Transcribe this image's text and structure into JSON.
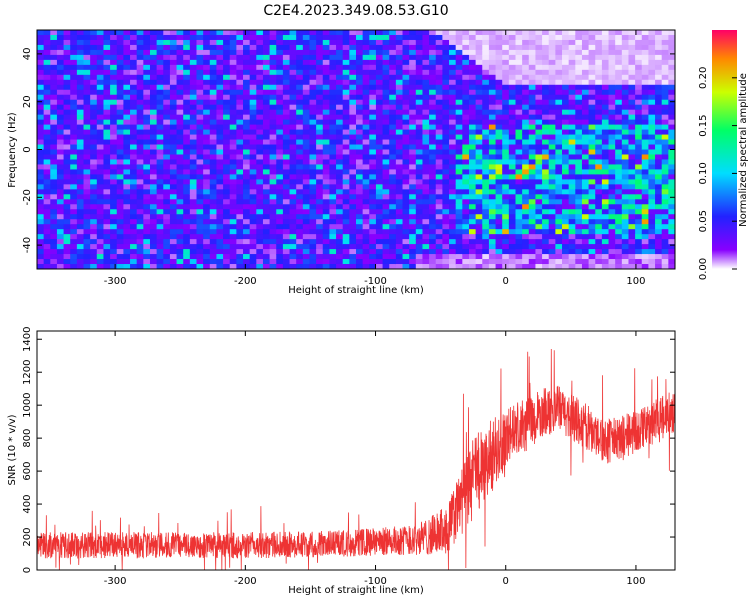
{
  "title": "C2E4.2023.349.08.53.G10",
  "chart_data": [
    {
      "type": "heatmap",
      "xlabel": "Height of straight line (km)",
      "ylabel": "Frequency (Hz)",
      "xlim": [
        -360,
        130
      ],
      "ylim": [
        -50,
        50
      ],
      "x_ticks": [
        -300,
        -200,
        -100,
        0,
        100
      ],
      "y_ticks": [
        -40,
        -20,
        0,
        20,
        40
      ],
      "colorbar": {
        "label": "Normalized spectral amplitude",
        "range": [
          0,
          0.25
        ],
        "ticks": [
          "0.00",
          "0.05",
          "0.10",
          "0.15",
          "0.20"
        ],
        "colormap": [
          "#ffffff",
          "#8800ff",
          "#2222ff",
          "#00ddff",
          "#00ff66",
          "#ccff00",
          "#ff8800",
          "#ff0066"
        ]
      },
      "regions": [
        {
          "x_range": [
            -360,
            -40
          ],
          "freq_range": [
            -50,
            50
          ],
          "amplitude_level": 0.04
        },
        {
          "x_range": [
            -40,
            130
          ],
          "freq_range": [
            -35,
            10
          ],
          "amplitude_level": 0.1
        },
        {
          "x_range": [
            -55,
            130
          ],
          "freq_range": [
            28,
            50
          ],
          "amplitude_level": 0.0
        }
      ]
    },
    {
      "type": "line",
      "xlabel": "Height of straight line (km)",
      "ylabel": "SNR (10 * v/v)",
      "xlim": [
        -360,
        130
      ],
      "ylim": [
        0,
        1450
      ],
      "x_ticks": [
        -300,
        -200,
        -100,
        0,
        100
      ],
      "y_ticks": [
        0,
        200,
        400,
        600,
        800,
        1000,
        1200,
        1400
      ],
      "color": "#ee3333",
      "series": [
        {
          "x": [
            -360,
            -300,
            -250,
            -200,
            -150,
            -100,
            -80,
            -60,
            -45,
            -35,
            -25,
            -20,
            -15,
            -10,
            -5,
            0,
            10,
            20,
            30,
            40,
            50,
            60,
            70,
            80,
            90,
            100,
            110,
            120,
            130
          ],
          "mean": [
            150,
            150,
            150,
            150,
            155,
            170,
            180,
            200,
            250,
            400,
            550,
            600,
            650,
            700,
            750,
            800,
            850,
            900,
            960,
            980,
            930,
            880,
            820,
            780,
            800,
            840,
            880,
            920,
            960
          ],
          "spread": [
            80,
            80,
            80,
            80,
            80,
            85,
            90,
            110,
            150,
            200,
            250,
            250,
            230,
            220,
            200,
            180,
            170,
            160,
            150,
            140,
            140,
            140,
            140,
            140,
            140,
            140,
            140,
            140,
            140
          ]
        }
      ]
    }
  ]
}
